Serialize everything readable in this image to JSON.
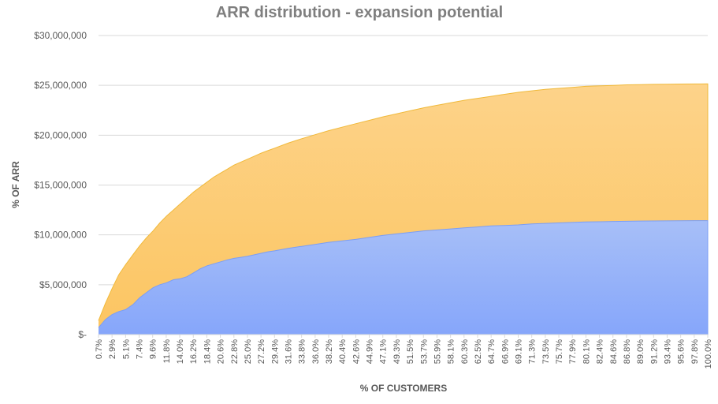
{
  "chart_data": {
    "type": "area",
    "title": "ARR distribution - expansion potential",
    "xlabel": "% OF CUSTOMERS",
    "ylabel": "% OF ARR",
    "yticks": [
      "$-",
      "$5,000,000",
      "$10,000,000",
      "$15,000,000",
      "$20,000,000",
      "$25,000,000",
      "$30,000,000"
    ],
    "ylim": [
      0,
      30000000
    ],
    "xticks": [
      "0.7%",
      "2.9%",
      "5.1%",
      "7.4%",
      "9.6%",
      "11.8%",
      "14.0%",
      "16.2%",
      "18.4%",
      "20.6%",
      "22.8%",
      "25.0%",
      "27.2%",
      "29.4%",
      "31.6%",
      "33.8%",
      "36.0%",
      "38.2%",
      "40.4%",
      "42.6%",
      "44.9%",
      "47.1%",
      "49.3%",
      "51.5%",
      "53.7%",
      "55.9%",
      "58.1%",
      "60.3%",
      "62.5%",
      "64.7%",
      "66.9%",
      "69.1%",
      "71.3%",
      "73.5%",
      "75.7%",
      "77.9%",
      "80.1%",
      "82.4%",
      "84.6%",
      "86.8%",
      "89.0%",
      "91.2%",
      "93.4%",
      "95.6%",
      "97.8%",
      "100.0%"
    ],
    "grid": true,
    "legend": "none",
    "series": [
      {
        "color": "#fdd48a",
        "x": [
          0.7,
          1.8,
          2.9,
          4.0,
          5.1,
          6.3,
          7.4,
          8.5,
          9.6,
          10.7,
          11.8,
          12.9,
          14.0,
          15.1,
          16.2,
          17.3,
          18.4,
          19.5,
          20.6,
          21.7,
          22.8,
          23.9,
          25.0,
          26.1,
          27.2,
          28.3,
          29.4,
          31.6,
          33.8,
          36.0,
          38.2,
          40.4,
          42.6,
          44.9,
          47.1,
          49.3,
          51.5,
          53.7,
          55.9,
          58.1,
          60.3,
          62.5,
          64.7,
          66.9,
          69.1,
          71.3,
          73.5,
          75.7,
          77.9,
          80.1,
          82.4,
          84.6,
          86.8,
          89.0,
          91.2,
          93.4,
          95.6,
          97.8,
          100.0
        ],
        "values": [
          1400000,
          3100000,
          4600000,
          6000000,
          7000000,
          8000000,
          8900000,
          9700000,
          10400000,
          11200000,
          11900000,
          12500000,
          13100000,
          13700000,
          14300000,
          14800000,
          15300000,
          15800000,
          16200000,
          16600000,
          17000000,
          17300000,
          17600000,
          17900000,
          18200000,
          18450000,
          18700000,
          19200000,
          19650000,
          20050000,
          20450000,
          20800000,
          21150000,
          21500000,
          21850000,
          22150000,
          22450000,
          22750000,
          23000000,
          23250000,
          23500000,
          23700000,
          23900000,
          24100000,
          24300000,
          24450000,
          24600000,
          24700000,
          24800000,
          24900000,
          24950000,
          25000000,
          25050000,
          25080000,
          25100000,
          25120000,
          25130000,
          25140000,
          25150000
        ]
      },
      {
        "color": "#8daaf8",
        "x": [
          0.7,
          1.8,
          2.9,
          4.0,
          5.1,
          6.3,
          7.4,
          8.5,
          9.6,
          10.7,
          11.8,
          12.9,
          14.0,
          15.1,
          16.2,
          17.3,
          18.4,
          19.5,
          20.6,
          21.7,
          22.8,
          23.9,
          25.0,
          26.1,
          27.2,
          28.3,
          29.4,
          31.6,
          33.8,
          36.0,
          38.2,
          40.4,
          42.6,
          44.9,
          47.1,
          49.3,
          51.5,
          53.7,
          55.9,
          58.1,
          60.3,
          62.5,
          64.7,
          66.9,
          69.1,
          71.3,
          73.5,
          75.7,
          77.9,
          80.1,
          82.4,
          84.6,
          86.8,
          89.0,
          91.2,
          93.4,
          95.6,
          97.8,
          100.0
        ],
        "values": [
          700000,
          1500000,
          2000000,
          2300000,
          2500000,
          3000000,
          3700000,
          4200000,
          4700000,
          5000000,
          5200000,
          5500000,
          5600000,
          5800000,
          6200000,
          6600000,
          6900000,
          7100000,
          7300000,
          7500000,
          7650000,
          7750000,
          7850000,
          8000000,
          8150000,
          8300000,
          8400000,
          8650000,
          8850000,
          9050000,
          9250000,
          9400000,
          9550000,
          9750000,
          9950000,
          10100000,
          10250000,
          10400000,
          10500000,
          10600000,
          10700000,
          10800000,
          10900000,
          10950000,
          11000000,
          11100000,
          11150000,
          11200000,
          11250000,
          11300000,
          11320000,
          11350000,
          11370000,
          11390000,
          11400000,
          11410000,
          11420000,
          11430000,
          11430000
        ]
      }
    ]
  }
}
